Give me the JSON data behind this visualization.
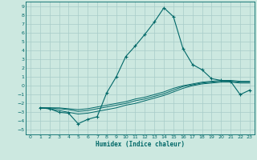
{
  "xlabel": "Humidex (Indice chaleur)",
  "background_color": "#cce8e0",
  "grid_color": "#a8ccc8",
  "line_color": "#006868",
  "xlim": [
    -0.5,
    23.5
  ],
  "ylim": [
    -5.5,
    9.5
  ],
  "xticks": [
    0,
    1,
    2,
    3,
    4,
    5,
    6,
    7,
    8,
    9,
    10,
    11,
    12,
    13,
    14,
    15,
    16,
    17,
    18,
    19,
    20,
    21,
    22,
    23
  ],
  "yticks": [
    -5,
    -4,
    -3,
    -2,
    -1,
    0,
    1,
    2,
    3,
    4,
    5,
    6,
    7,
    8,
    9
  ],
  "series1_x": [
    1,
    2,
    3,
    4,
    5,
    6,
    7,
    8,
    9,
    10,
    11,
    12,
    13,
    14,
    15,
    16,
    17,
    18,
    19,
    20,
    21,
    22,
    23
  ],
  "series1_y": [
    -2.5,
    -2.6,
    -3.0,
    -3.1,
    -4.3,
    -3.8,
    -3.5,
    -0.8,
    1.0,
    3.3,
    4.5,
    5.8,
    7.2,
    8.8,
    7.8,
    4.2,
    2.4,
    1.8,
    0.8,
    0.6,
    0.5,
    -1.0,
    -0.5
  ],
  "series2_x": [
    1,
    2,
    3,
    4,
    5,
    6,
    7,
    8,
    9,
    10,
    11,
    12,
    13,
    14,
    15,
    16,
    17,
    18,
    19,
    20,
    21,
    22,
    23
  ],
  "series2_y": [
    -2.5,
    -2.5,
    -2.5,
    -2.6,
    -2.7,
    -2.6,
    -2.4,
    -2.2,
    -2.0,
    -1.8,
    -1.5,
    -1.3,
    -1.0,
    -0.7,
    -0.3,
    0.0,
    0.2,
    0.4,
    0.5,
    0.6,
    0.6,
    0.5,
    0.5
  ],
  "series3_x": [
    1,
    2,
    3,
    4,
    5,
    6,
    7,
    8,
    9,
    10,
    11,
    12,
    13,
    14,
    15,
    16,
    17,
    18,
    19,
    20,
    21,
    22,
    23
  ],
  "series3_y": [
    -2.5,
    -2.6,
    -2.8,
    -3.0,
    -3.2,
    -3.1,
    -2.9,
    -2.7,
    -2.5,
    -2.2,
    -2.0,
    -1.7,
    -1.4,
    -1.1,
    -0.7,
    -0.3,
    0.0,
    0.2,
    0.3,
    0.4,
    0.4,
    0.3,
    0.3
  ],
  "series4_x": [
    1,
    2,
    3,
    4,
    5,
    6,
    7,
    8,
    9,
    10,
    11,
    12,
    13,
    14,
    15,
    16,
    17,
    18,
    19,
    20,
    21,
    22,
    23
  ],
  "series4_y": [
    -2.5,
    -2.5,
    -2.6,
    -2.7,
    -2.9,
    -2.8,
    -2.6,
    -2.4,
    -2.2,
    -2.0,
    -1.7,
    -1.5,
    -1.2,
    -0.9,
    -0.5,
    -0.1,
    0.1,
    0.3,
    0.4,
    0.5,
    0.5,
    0.4,
    0.4
  ]
}
